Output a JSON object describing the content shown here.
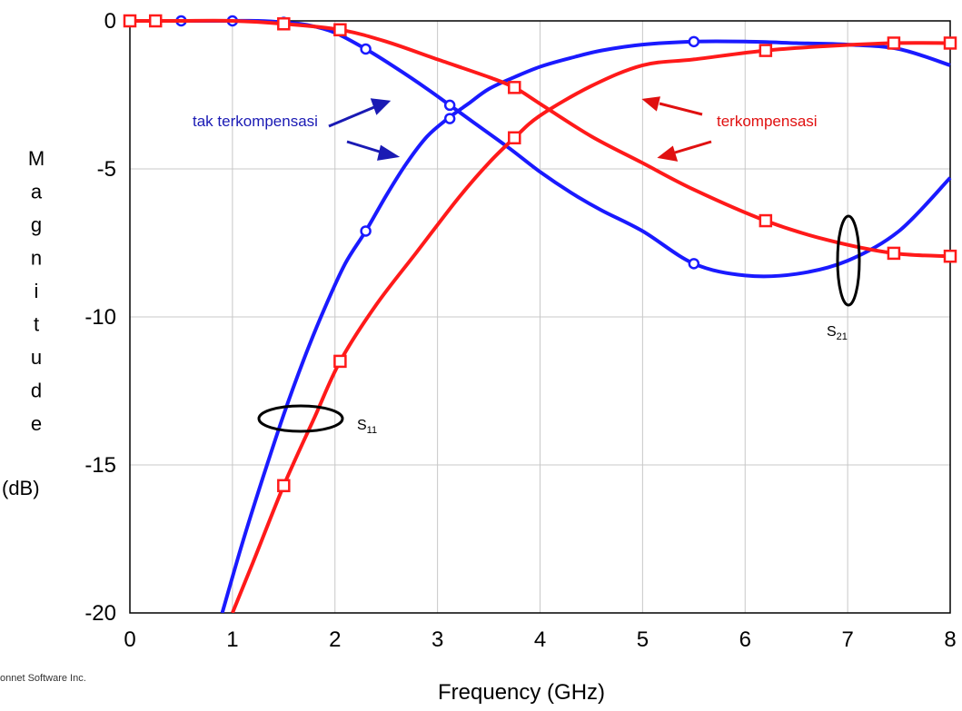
{
  "chart_data": {
    "type": "line",
    "xlabel": "Frequency (GHz)",
    "ylabel_letters": [
      "M",
      "a",
      "g",
      "n",
      "i",
      "t",
      "u",
      "d",
      "e"
    ],
    "ylabel_unit": "(dB)",
    "xlim": [
      0,
      8
    ],
    "ylim": [
      -20,
      0
    ],
    "x_ticks": [
      "0",
      "1",
      "2",
      "3",
      "4",
      "5",
      "6",
      "7",
      "8"
    ],
    "y_ticks": [
      "0",
      "-5",
      "-10",
      "-15",
      "-20"
    ],
    "x_tick_values": [
      0,
      1,
      2,
      3,
      4,
      5,
      6,
      7,
      8
    ],
    "y_tick_values": [
      0,
      -5,
      -10,
      -15,
      -20
    ],
    "grid": true,
    "colors": {
      "blue": "#1a1aff",
      "red": "#ff1a1a",
      "blue_text": "#1a1ab4",
      "red_text": "#e01010"
    },
    "series": [
      {
        "color": "blue",
        "marker": "circle",
        "x": [
          0.9,
          1.1,
          1.3,
          1.5,
          1.7,
          1.9,
          2.1,
          2.3,
          2.5,
          2.7,
          2.9,
          3.1,
          3.3,
          3.5,
          3.75,
          4.0,
          4.3,
          4.6,
          5.0,
          5.5,
          6.0,
          6.5,
          7.0,
          7.5,
          8.0
        ],
        "y": [
          -20.0,
          -17.6,
          -15.4,
          -13.3,
          -11.4,
          -9.7,
          -8.2,
          -7.1,
          -5.9,
          -4.8,
          -3.9,
          -3.3,
          -2.8,
          -2.3,
          -1.9,
          -1.55,
          -1.25,
          -1.0,
          -0.8,
          -0.7,
          -0.7,
          -0.75,
          -0.8,
          -0.95,
          -1.5
        ],
        "marker_x": [
          2.3,
          3.12,
          5.5
        ],
        "marker_y": [
          -7.1,
          -3.3,
          -0.7
        ]
      },
      {
        "color": "blue",
        "marker": "circle",
        "x": [
          0,
          0.25,
          0.5,
          0.75,
          1.0,
          1.25,
          1.5,
          1.75,
          2.0,
          2.3,
          2.6,
          2.9,
          3.12,
          3.4,
          3.7,
          4.0,
          4.3,
          4.6,
          5.0,
          5.5,
          6.0,
          6.5,
          7.0,
          7.5,
          8.0
        ],
        "y": [
          0,
          0,
          0,
          0,
          0,
          0,
          -0.05,
          -0.15,
          -0.4,
          -0.95,
          -1.6,
          -2.3,
          -2.85,
          -3.55,
          -4.3,
          -5.1,
          -5.8,
          -6.4,
          -7.1,
          -8.2,
          -8.6,
          -8.55,
          -8.1,
          -7.1,
          -5.3
        ],
        "marker_x": [
          0,
          0.5,
          1.0,
          1.5,
          2.3,
          3.12,
          5.5
        ],
        "marker_y": [
          0,
          0,
          0,
          -0.05,
          -0.95,
          -2.85,
          -8.2
        ]
      },
      {
        "color": "red",
        "marker": "square",
        "x": [
          1.0,
          1.2,
          1.5,
          1.8,
          2.05,
          2.4,
          2.8,
          3.2,
          3.5,
          3.75,
          4.0,
          4.5,
          5.0,
          5.5,
          6.2,
          6.8,
          7.45,
          8.0
        ],
        "y": [
          -20.0,
          -18.3,
          -15.7,
          -13.4,
          -11.5,
          -9.6,
          -7.8,
          -6.0,
          -4.8,
          -3.95,
          -3.2,
          -2.2,
          -1.5,
          -1.3,
          -1.0,
          -0.85,
          -0.75,
          -0.75
        ],
        "marker_x": [
          1.5,
          2.05,
          3.75,
          6.2,
          7.45,
          8.0
        ],
        "marker_y": [
          -15.7,
          -11.5,
          -3.95,
          -1.0,
          -0.75,
          -0.75
        ]
      },
      {
        "color": "red",
        "marker": "square",
        "x": [
          0,
          0.25,
          0.5,
          1.0,
          1.5,
          2.05,
          2.5,
          3.0,
          3.5,
          3.75,
          4.0,
          4.5,
          5.0,
          5.5,
          6.2,
          6.8,
          7.45,
          8.0
        ],
        "y": [
          0,
          0,
          0,
          0,
          -0.1,
          -0.3,
          -0.7,
          -1.3,
          -1.9,
          -2.25,
          -2.8,
          -3.9,
          -4.8,
          -5.7,
          -6.75,
          -7.4,
          -7.85,
          -7.95
        ],
        "marker_x": [
          0,
          0.25,
          1.5,
          2.05,
          3.75,
          6.2,
          7.45,
          8.0
        ],
        "marker_y": [
          0,
          0,
          -0.1,
          -0.3,
          -2.25,
          -6.75,
          -7.85,
          -7.95
        ]
      }
    ],
    "annotations": {
      "uncompensated": "tak terkompensasi",
      "compensated": "terkompensasi",
      "s11_main": "S",
      "s11_sub": "11",
      "s21_main": "S",
      "s21_sub": "21"
    },
    "watermark": "onnet Software Inc."
  }
}
